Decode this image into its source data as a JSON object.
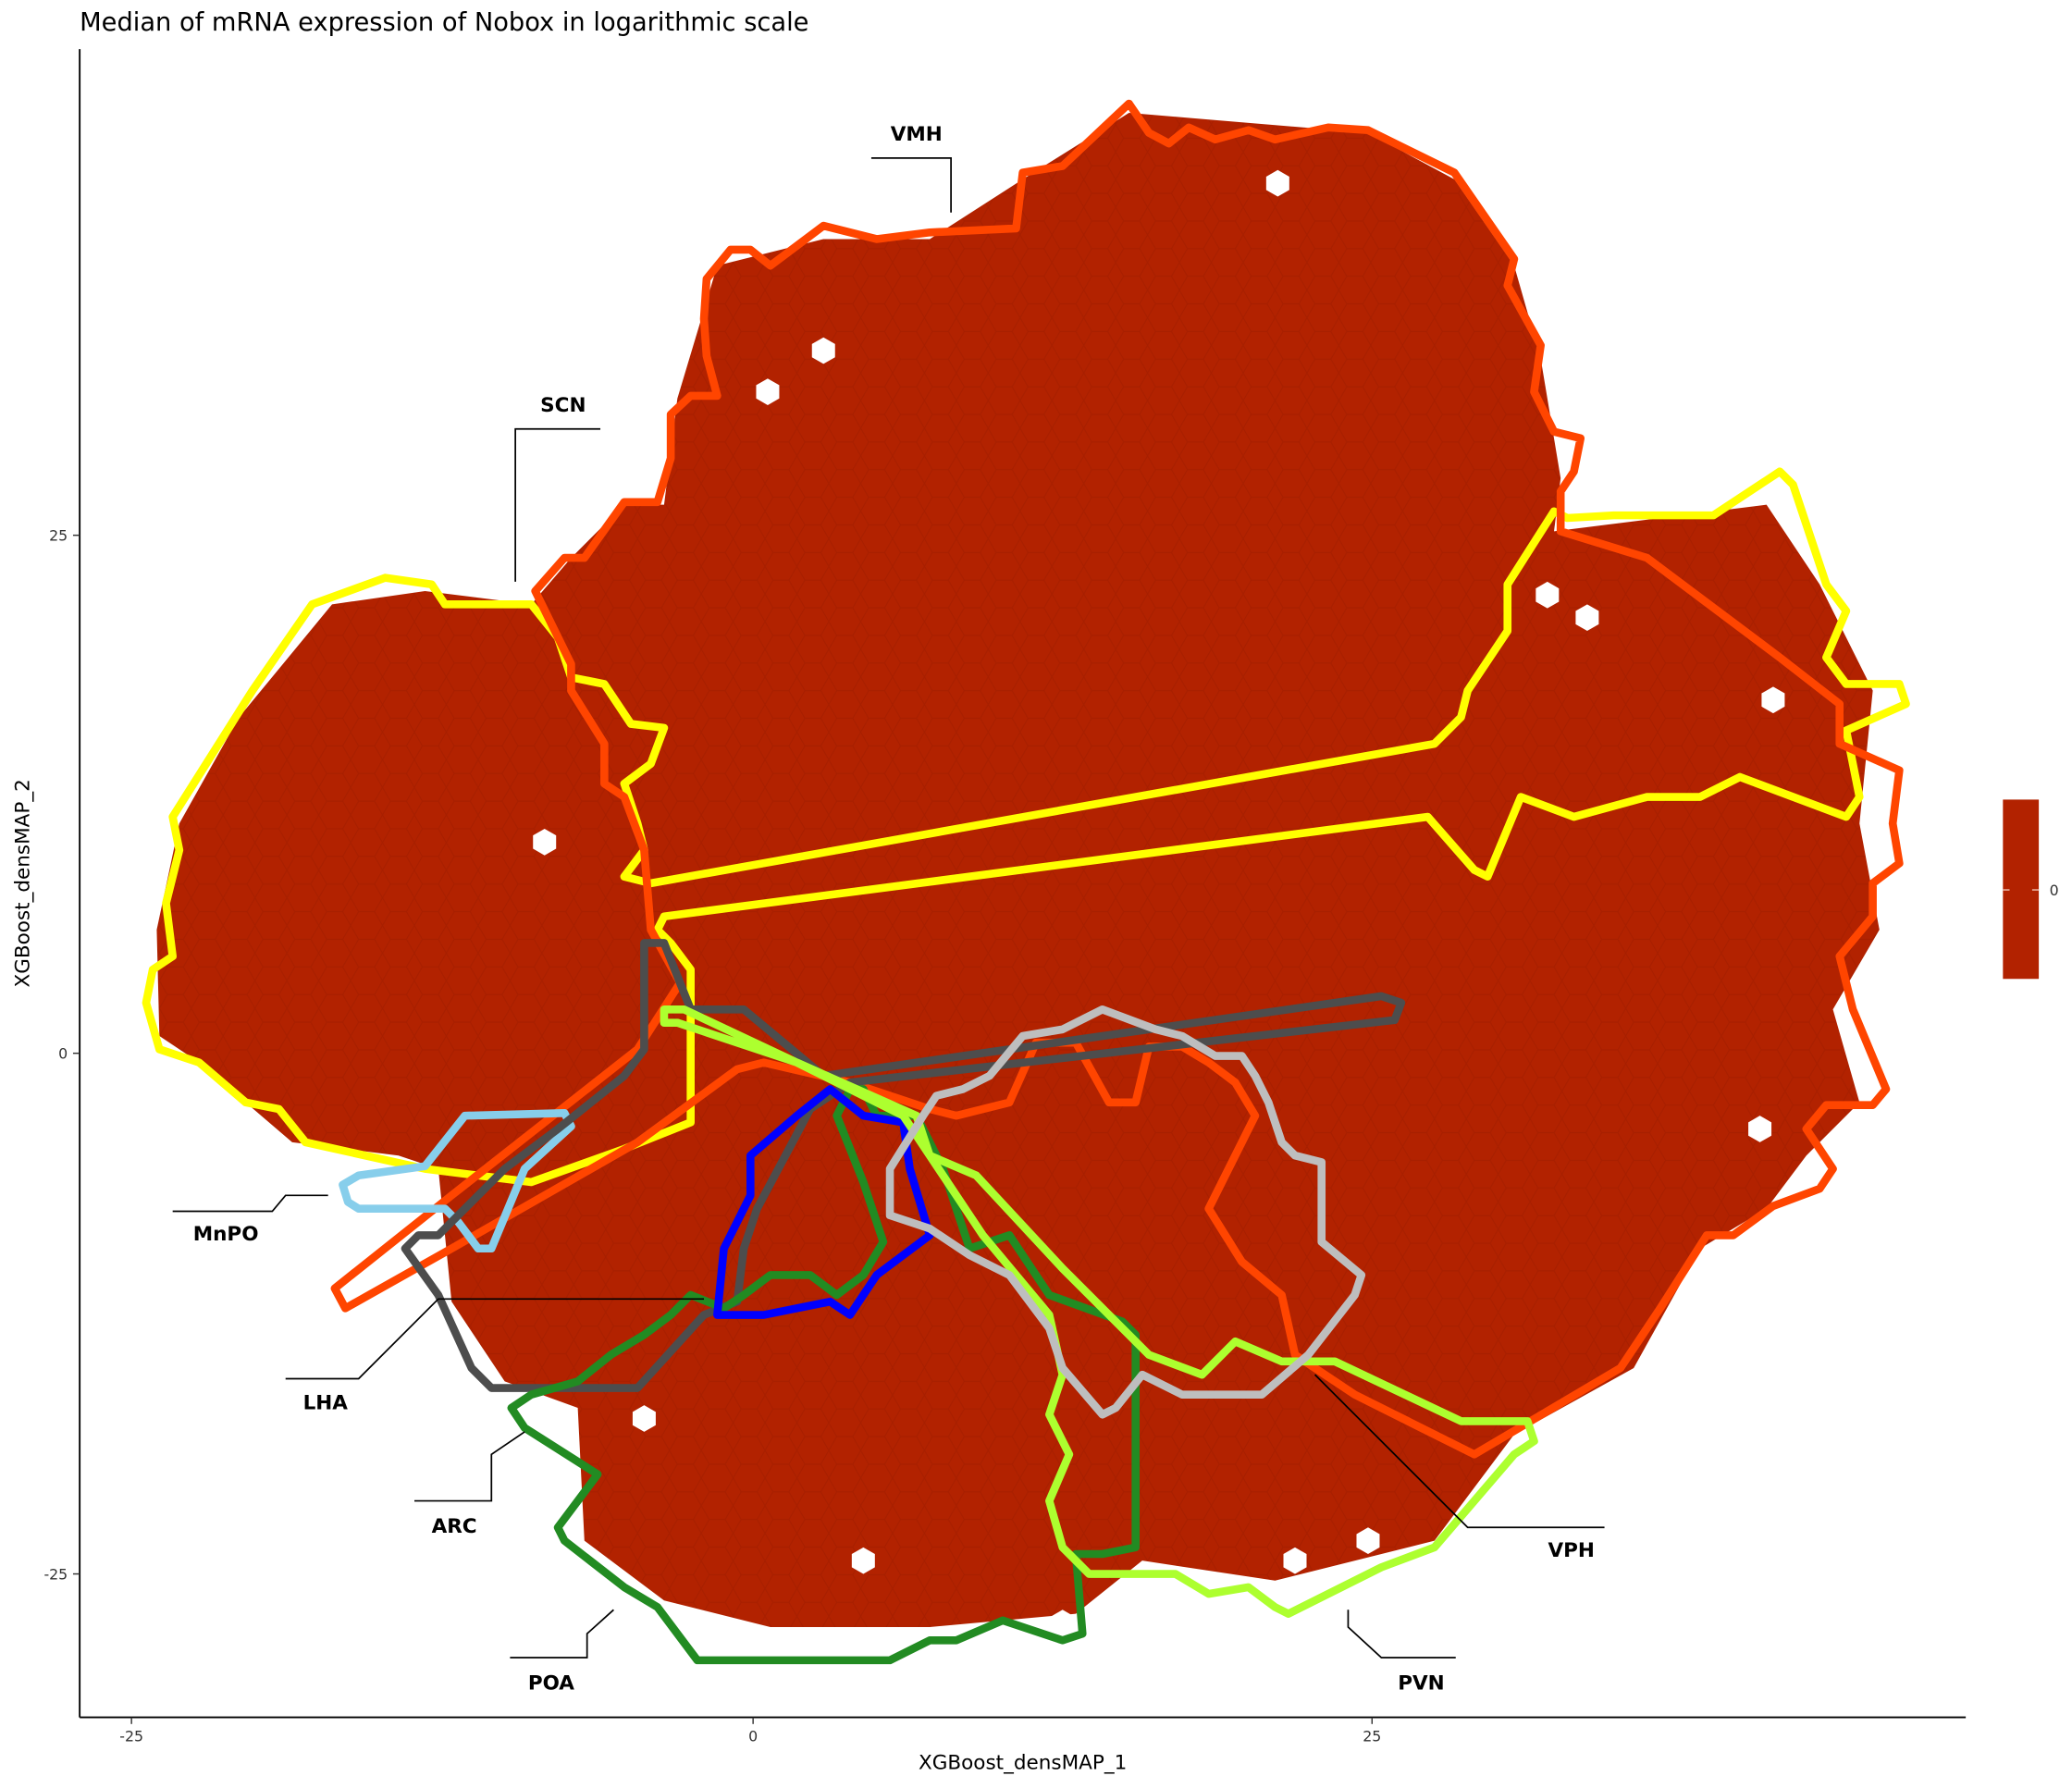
{
  "chart_data": {
    "type": "hexbin",
    "title": "Median of mRNA expression of Nobox in logarithmic scale",
    "xlabel": "XGBoost_densMAP_1",
    "ylabel": "XGBoost_densMAP_2",
    "x_ticks": [
      "-25",
      "0",
      "25"
    ],
    "y_ticks": [
      "25",
      "0",
      "-25"
    ],
    "xlim": [
      -27,
      49
    ],
    "ylim": [
      -32,
      39
    ],
    "grid": false,
    "fill_value": 0,
    "fill_color": "#B22200",
    "legend": {
      "placement": "right",
      "ticks": [
        "0"
      ],
      "color": "#B22200"
    },
    "regions": [
      {
        "label": "VMH",
        "color": "#FF4500"
      },
      {
        "label": "SCN",
        "color": "#FFFF00"
      },
      {
        "label": "MnPO",
        "color": "#87CEEB"
      },
      {
        "label": "LHA",
        "color": "#4D4D4D"
      },
      {
        "label": "ARC",
        "color": "#0000FF"
      },
      {
        "label": "POA",
        "color": "#228B22"
      },
      {
        "label": "PVN",
        "color": "#ADFF2F"
      },
      {
        "label": "VPH",
        "color": "#BEBEBE"
      }
    ]
  }
}
